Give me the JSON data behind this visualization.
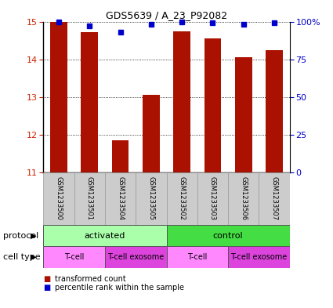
{
  "title": "GDS5639 / A_23_P92082",
  "samples": [
    "GSM1233500",
    "GSM1233501",
    "GSM1233504",
    "GSM1233505",
    "GSM1233502",
    "GSM1233503",
    "GSM1233506",
    "GSM1233507"
  ],
  "red_values": [
    14.98,
    14.72,
    11.85,
    13.05,
    14.75,
    14.55,
    14.05,
    14.25
  ],
  "blue_percentiles": [
    100,
    97,
    93,
    98,
    100,
    99,
    98,
    99
  ],
  "ylim_left": [
    11,
    15
  ],
  "yticks_left": [
    11,
    12,
    13,
    14,
    15
  ],
  "yticks_right": [
    0,
    25,
    50,
    75,
    100
  ],
  "protocol_groups": [
    {
      "label": "activated",
      "start": 0,
      "end": 4,
      "color": "#aaffaa"
    },
    {
      "label": "control",
      "start": 4,
      "end": 8,
      "color": "#44dd44"
    }
  ],
  "cell_type_groups": [
    {
      "label": "T-cell",
      "start": 0,
      "end": 2,
      "color": "#ff88ff"
    },
    {
      "label": "T-cell exosome",
      "start": 2,
      "end": 4,
      "color": "#dd44dd"
    },
    {
      "label": "T-cell",
      "start": 4,
      "end": 6,
      "color": "#ff88ff"
    },
    {
      "label": "T-cell exosome",
      "start": 6,
      "end": 8,
      "color": "#dd44dd"
    }
  ],
  "bar_color": "#aa1100",
  "dot_color": "#0000cc",
  "tick_color_left": "#cc2200",
  "tick_color_right": "#0000cc",
  "legend_red": "transformed count",
  "legend_blue": "percentile rank within the sample",
  "protocol_label": "protocol",
  "cell_type_label": "cell type",
  "sample_box_color": "#cccccc",
  "sample_box_edge": "#999999",
  "fig_width": 4.25,
  "fig_height": 3.93,
  "fig_dpi": 100
}
